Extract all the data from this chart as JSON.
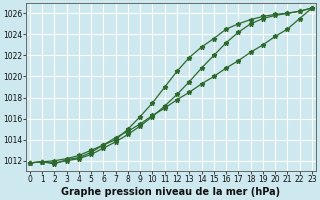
{
  "title": "",
  "xlabel": "Graphe pression niveau de la mer (hPa)",
  "ylabel": "",
  "background_color": "#cde8ee",
  "grid_color": "#ffffff",
  "line_color": "#2d6a2d",
  "xlim": [
    -0.3,
    23.3
  ],
  "ylim": [
    1011.0,
    1027.0
  ],
  "yticks": [
    1012,
    1014,
    1016,
    1018,
    1020,
    1022,
    1024,
    1026
  ],
  "xticks": [
    0,
    1,
    2,
    3,
    4,
    5,
    6,
    7,
    8,
    9,
    10,
    11,
    12,
    13,
    14,
    15,
    16,
    17,
    18,
    19,
    20,
    21,
    22,
    23
  ],
  "line1_x": [
    0,
    1,
    2,
    3,
    4,
    5,
    6,
    7,
    8,
    9,
    10,
    11,
    12,
    13,
    14,
    15,
    16,
    17,
    18,
    19,
    20,
    21,
    22,
    23
  ],
  "line1_y": [
    1011.8,
    1011.9,
    1012.0,
    1012.2,
    1012.5,
    1013.0,
    1013.5,
    1014.2,
    1014.8,
    1015.5,
    1016.3,
    1017.0,
    1017.8,
    1018.5,
    1019.3,
    1020.0,
    1020.8,
    1021.5,
    1022.3,
    1023.0,
    1023.8,
    1024.5,
    1025.5,
    1026.5
  ],
  "line2_x": [
    0,
    1,
    2,
    3,
    4,
    5,
    6,
    7,
    8,
    9,
    10,
    11,
    12,
    13,
    14,
    15,
    16,
    17,
    18,
    19,
    20,
    21,
    22,
    23
  ],
  "line2_y": [
    1011.8,
    1011.9,
    1011.7,
    1012.1,
    1012.3,
    1012.8,
    1013.5,
    1014.0,
    1015.0,
    1016.2,
    1017.5,
    1019.0,
    1020.5,
    1021.8,
    1022.8,
    1023.6,
    1024.5,
    1025.0,
    1025.4,
    1025.7,
    1025.9,
    1026.0,
    1026.2,
    1026.5
  ],
  "line3_x": [
    0,
    1,
    2,
    3,
    4,
    5,
    6,
    7,
    8,
    9,
    10,
    11,
    12,
    13,
    14,
    15,
    16,
    17,
    18,
    19,
    20,
    21,
    22,
    23
  ],
  "line3_y": [
    1011.8,
    1011.9,
    1011.8,
    1012.0,
    1012.2,
    1012.6,
    1013.2,
    1013.8,
    1014.5,
    1015.3,
    1016.2,
    1017.2,
    1018.3,
    1019.5,
    1020.8,
    1022.0,
    1023.2,
    1024.2,
    1025.0,
    1025.5,
    1025.8,
    1026.0,
    1026.2,
    1026.5
  ],
  "marker": "*",
  "markersize": 3.5,
  "linewidth": 0.9,
  "xlabel_fontsize": 7,
  "tick_fontsize": 5.5,
  "xlabel_bold": true
}
